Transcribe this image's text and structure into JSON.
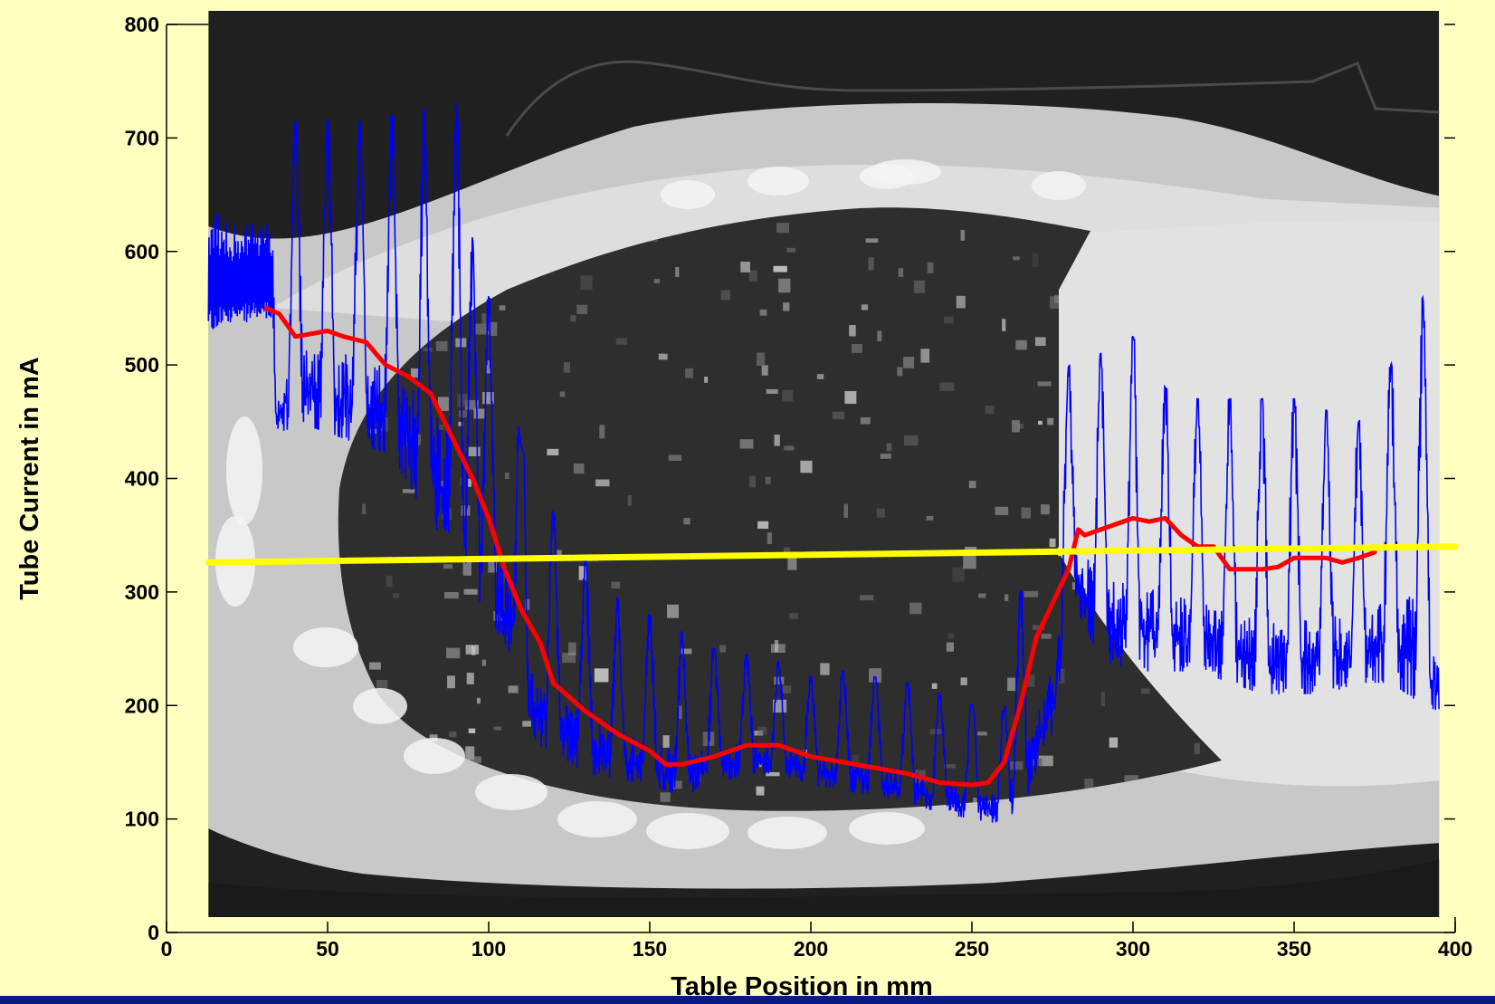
{
  "chart_data": {
    "type": "line",
    "title": "",
    "xlabel": "Table Position in mm",
    "ylabel": "Tube Current in mA",
    "xlim": [
      0,
      400
    ],
    "ylim": [
      0,
      800
    ],
    "xticks": [
      0,
      50,
      100,
      150,
      200,
      250,
      300,
      350,
      400
    ],
    "yticks": [
      0,
      100,
      200,
      300,
      400,
      500,
      600,
      700,
      800
    ],
    "grid": false,
    "legend": "none",
    "background_image": "CT scout image of chest (lungs) behind plot area",
    "image_x_range": [
      13,
      395
    ],
    "series": [
      {
        "style": "thin-oscillating",
        "color": "#0000ff",
        "envelope": {
          "x": [
            13,
            20,
            33,
            34,
            40,
            45,
            50,
            60,
            70,
            80,
            90,
            95,
            100,
            105,
            110,
            115,
            120,
            130,
            140,
            150,
            160,
            170,
            180,
            190,
            200,
            210,
            220,
            230,
            240,
            250,
            260,
            265,
            272,
            276,
            280,
            290,
            300,
            310,
            320,
            330,
            340,
            350,
            360,
            370,
            380,
            390,
            395
          ],
          "low": [
            530,
            535,
            540,
            440,
            445,
            445,
            440,
            430,
            420,
            370,
            330,
            290,
            280,
            250,
            215,
            165,
            160,
            140,
            135,
            130,
            120,
            130,
            140,
            140,
            130,
            125,
            120,
            115,
            105,
            100,
            95,
            100,
            160,
            180,
            300,
            240,
            230,
            230,
            230,
            220,
            210,
            210,
            210,
            220,
            220,
            200,
            195
          ],
          "high": [
            640,
            625,
            630,
            520,
            715,
            700,
            715,
            715,
            720,
            725,
            730,
            610,
            560,
            545,
            430,
            385,
            370,
            330,
            295,
            280,
            265,
            250,
            245,
            240,
            225,
            230,
            225,
            220,
            210,
            200,
            195,
            300,
            320,
            440,
            500,
            510,
            525,
            480,
            470,
            470,
            470,
            470,
            460,
            450,
            500,
            560,
            330
          ],
          "peak_x": [
            40,
            50,
            60,
            70,
            80,
            90,
            95,
            100,
            110,
            120,
            130,
            140,
            150,
            160,
            170,
            180,
            190,
            200,
            210,
            220,
            230,
            240,
            250,
            260,
            265,
            280,
            290,
            300,
            310,
            320,
            330,
            340,
            350,
            360,
            370,
            380,
            390
          ],
          "peak_y": [
            715,
            710,
            715,
            715,
            720,
            725,
            600,
            560,
            540,
            380,
            330,
            290,
            280,
            260,
            250,
            240,
            235,
            230,
            230,
            230,
            220,
            215,
            210,
            200,
            295,
            490,
            510,
            520,
            480,
            470,
            470,
            470,
            470,
            460,
            450,
            500,
            555
          ]
        }
      },
      {
        "style": "thick",
        "color": "#ff0000",
        "x": [
          31,
          35,
          40,
          50,
          55,
          62,
          68,
          75,
          82,
          88,
          95,
          100,
          105,
          110,
          116,
          120,
          130,
          140,
          150,
          155,
          160,
          170,
          180,
          190,
          200,
          210,
          220,
          230,
          240,
          250,
          255,
          260,
          265,
          270,
          275,
          280,
          283,
          285,
          290,
          300,
          305,
          310,
          315,
          320,
          325,
          330,
          340,
          345,
          350,
          360,
          365,
          370,
          375
        ],
        "y": [
          550,
          545,
          525,
          530,
          525,
          520,
          500,
          490,
          475,
          440,
          400,
          365,
          320,
          285,
          255,
          220,
          195,
          175,
          160,
          148,
          148,
          155,
          165,
          165,
          155,
          150,
          145,
          140,
          132,
          130,
          132,
          150,
          200,
          260,
          290,
          320,
          355,
          350,
          355,
          365,
          362,
          365,
          350,
          340,
          340,
          320,
          320,
          322,
          330,
          330,
          326,
          330,
          335
        ]
      },
      {
        "style": "thick",
        "color": "#ffff00",
        "x": [
          13,
          400
        ],
        "y": [
          326,
          340
        ]
      }
    ]
  }
}
